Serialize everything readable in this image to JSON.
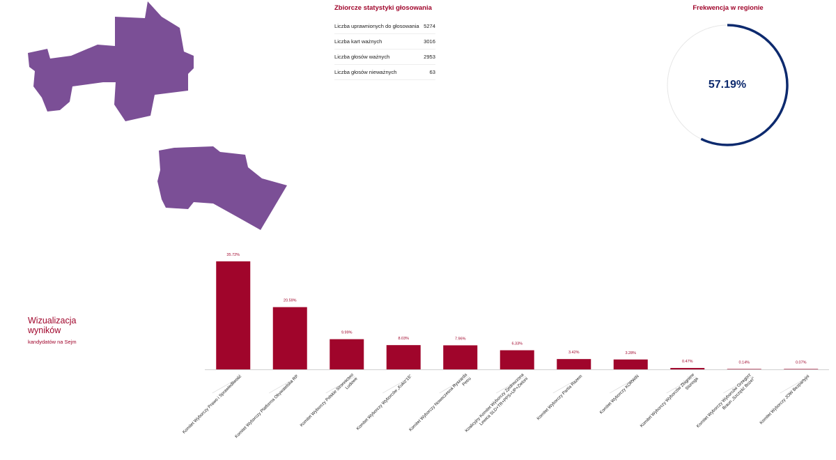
{
  "colors": {
    "accent": "#a0052b",
    "bar": "#a0052b",
    "region": "#7b4f96",
    "ring": "#0d2a6e",
    "ring_track": "#e6e6e6"
  },
  "stats": {
    "title": "Zbiorcze statystyki głosowania",
    "rows": [
      {
        "label": "Liczba uprawnionych do głosowania",
        "value": "5274"
      },
      {
        "label": "Liczba kart ważnych",
        "value": "3016"
      },
      {
        "label": "Liczba głosów ważnych",
        "value": "2953"
      },
      {
        "label": "Liczba głosów nieważnych",
        "value": "63"
      }
    ]
  },
  "turnout": {
    "title": "Frekwencja w regionie",
    "value_text": "57.19%",
    "fraction": 0.5719
  },
  "visualization": {
    "title": "Wizualizacja wyników",
    "subtitle": "kandydatów na Sejm"
  },
  "chart_data": {
    "type": "bar",
    "categories": [
      [
        "Komitet Wyborczy Prawo i Sprawiedliwość"
      ],
      [
        "Komitet Wyborczy Platforma Obywatelska RP"
      ],
      [
        "Komitet Wyborczy Polskie Stronnictwo",
        "Ludowe"
      ],
      [
        "Komitet Wyborczy Wyborców „Kukiz'15”"
      ],
      [
        "Komitet Wyborczy Nowoczesna Ryszarda",
        "Petru"
      ],
      [
        "Koalicyjny Komitet Wyborczy Zjednoczona",
        "Lewica SLD+TR+PPS+UP+Zieloni"
      ],
      [
        "Komitet Wyborczy Partia Razem"
      ],
      [
        "Komitet Wyborczy KORWiN"
      ],
      [
        "Komitet Wyborczy Wyborców Zbigniew",
        "Stonoga"
      ],
      [
        "Komitet Wyborczy Wyborców Grzegorz",
        "Braun „Szczęść Boże!”"
      ],
      [
        "Komitet Wyborczy JOW Bezpartyjni"
      ]
    ],
    "values": [
      35.72,
      20.59,
      9.99,
      8.03,
      7.96,
      6.33,
      3.42,
      3.28,
      0.47,
      0.14,
      0.07
    ],
    "value_labels": [
      "35.72%",
      "20.59%",
      "9.99%",
      "8.03%",
      "7.96%",
      "6.33%",
      "3.42%",
      "3.28%",
      "0.47%",
      "0.14%",
      "0.07%"
    ],
    "ylim": [
      0,
      35.72
    ],
    "grid": false,
    "legend": "none"
  }
}
